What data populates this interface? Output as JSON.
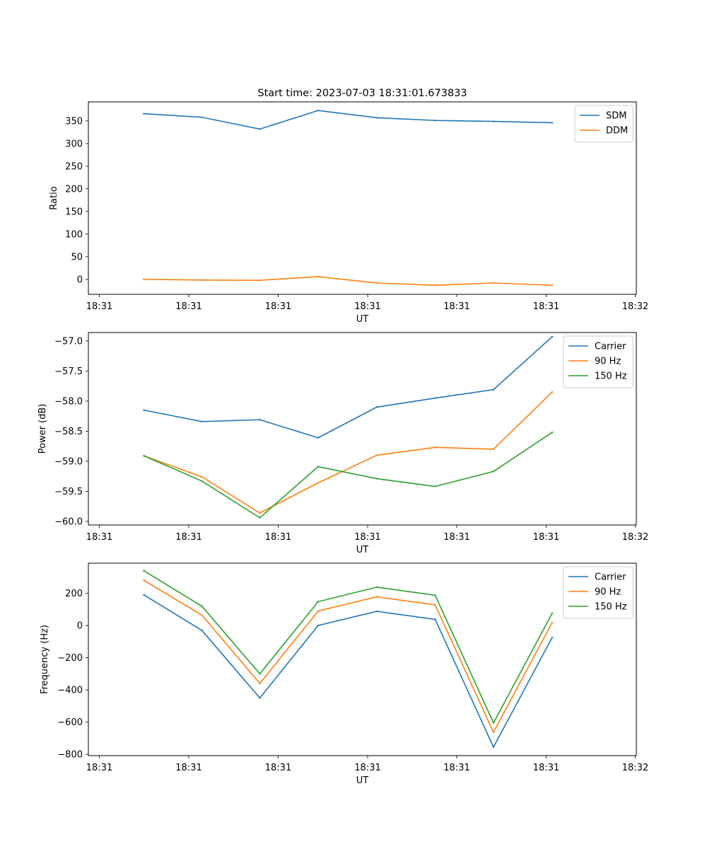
{
  "figure_title": "Start time: 2023-07-03 18:31:01.673833",
  "chart_data": [
    {
      "type": "line",
      "title": "Start time: 2023-07-03 18:31:01.673833",
      "xlabel": "UT",
      "ylabel": "Ratio",
      "x_index": [
        0,
        1,
        2,
        3,
        4,
        5,
        6,
        7
      ],
      "x_tick_labels": [
        "18:31",
        "18:31",
        "18:31",
        "18:31",
        "18:31",
        "18:31",
        "18:32"
      ],
      "y_ticks": [
        0,
        50,
        100,
        150,
        200,
        250,
        300,
        350
      ],
      "y_tick_labels": [
        "0",
        "50",
        "100",
        "150",
        "200",
        "250",
        "300",
        "350"
      ],
      "ylim": [
        -33,
        392
      ],
      "legend_position": "top-right",
      "series": [
        {
          "name": "SDM",
          "color": "#1f77b4",
          "values": [
            366,
            358,
            332,
            373,
            357,
            351,
            349,
            346
          ]
        },
        {
          "name": "DDM",
          "color": "#ff7f0e",
          "values": [
            0,
            -1.5,
            -2,
            6,
            -8,
            -13,
            -8,
            -13
          ]
        }
      ]
    },
    {
      "type": "line",
      "title": "",
      "xlabel": "UT",
      "ylabel": "Power (dB)",
      "x_index": [
        0,
        1,
        2,
        3,
        4,
        5,
        6,
        7
      ],
      "x_tick_labels": [
        "18:31",
        "18:31",
        "18:31",
        "18:31",
        "18:31",
        "18:31",
        "18:32"
      ],
      "y_ticks": [
        -60.0,
        -59.5,
        -59.0,
        -58.5,
        -58.0,
        -57.5,
        -57.0
      ],
      "y_tick_labels": [
        "−60.0",
        "−59.5",
        "−59.0",
        "−58.5",
        "−58.0",
        "−57.5",
        "−57.0"
      ],
      "ylim": [
        -60.06,
        -56.86
      ],
      "legend_position": "top-right",
      "series": [
        {
          "name": "Carrier",
          "color": "#1f77b4",
          "values": [
            -58.15,
            -58.34,
            -58.31,
            -58.61,
            -58.1,
            -57.95,
            -57.81,
            -56.93
          ]
        },
        {
          "name": "90 Hz",
          "color": "#ff7f0e",
          "values": [
            -58.91,
            -59.26,
            -59.86,
            -59.36,
            -58.9,
            -58.77,
            -58.8,
            -57.85
          ]
        },
        {
          "name": "150 Hz",
          "color": "#2ca02c",
          "values": [
            -58.91,
            -59.33,
            -59.94,
            -59.09,
            -59.29,
            -59.42,
            -59.17,
            -58.52
          ]
        }
      ]
    },
    {
      "type": "line",
      "title": "",
      "xlabel": "UT",
      "ylabel": "Frequency (Hz)",
      "x_index": [
        0,
        1,
        2,
        3,
        4,
        5,
        6,
        7
      ],
      "x_tick_labels": [
        "18:31",
        "18:31",
        "18:31",
        "18:31",
        "18:31",
        "18:31",
        "18:32"
      ],
      "y_ticks": [
        -800,
        -600,
        -400,
        -200,
        0,
        200
      ],
      "y_tick_labels": [
        "−800",
        "−600",
        "−400",
        "−200",
        "0",
        "200"
      ],
      "ylim": [
        -808,
        387
      ],
      "legend_position": "top-right",
      "series": [
        {
          "name": "Carrier",
          "color": "#1f77b4",
          "values": [
            190,
            -30,
            -450,
            0,
            88,
            38,
            -755,
            -75
          ]
        },
        {
          "name": "90 Hz",
          "color": "#ff7f0e",
          "values": [
            280,
            65,
            -360,
            90,
            178,
            128,
            -663,
            18
          ]
        },
        {
          "name": "150 Hz",
          "color": "#2ca02c",
          "values": [
            340,
            120,
            -300,
            148,
            238,
            188,
            -605,
            76
          ]
        }
      ]
    }
  ]
}
